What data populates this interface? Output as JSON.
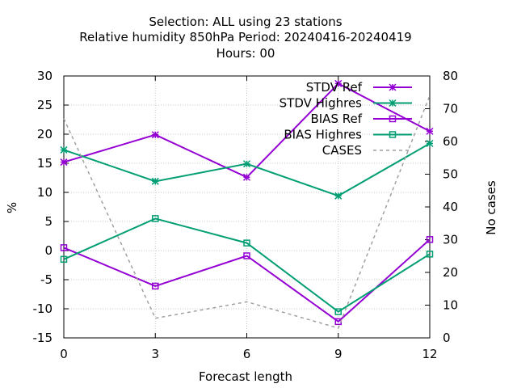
{
  "chart_data": {
    "type": "line",
    "title_lines": [
      "Selection: ALL using    23 stations",
      "Relative humidity 850hPa    Period: 20240416-20240419",
      "Hours:  00"
    ],
    "xlabel": "Forecast length",
    "ylabel": "%",
    "y2label": "No cases",
    "x": [
      0,
      3,
      6,
      9,
      12
    ],
    "xlim": [
      0,
      12
    ],
    "ylim": [
      -15,
      30
    ],
    "y2lim": [
      0,
      80
    ],
    "x_ticks": [
      "0",
      "3",
      "6",
      "9",
      "12"
    ],
    "y_ticks": [
      "-15",
      "-10",
      "-5",
      "0",
      "5",
      "10",
      "15",
      "20",
      "25",
      "30"
    ],
    "y2_ticks": [
      "0",
      "10",
      "20",
      "30",
      "40",
      "50",
      "60",
      "70",
      "80"
    ],
    "grid": true,
    "legend_position": "top-right",
    "series": [
      {
        "name": "STDV Ref",
        "axis": "y",
        "color": "#9400d3",
        "marker": "star",
        "dash": false,
        "values": [
          15.2,
          19.9,
          12.6,
          28.7,
          20.5
        ]
      },
      {
        "name": "STDV Highres",
        "axis": "y",
        "color": "#009e73",
        "marker": "star",
        "dash": false,
        "values": [
          17.3,
          11.9,
          14.9,
          9.4,
          18.4
        ]
      },
      {
        "name": "BIAS Ref",
        "axis": "y",
        "color": "#9400d3",
        "marker": "square",
        "dash": false,
        "values": [
          0.5,
          -6.1,
          -0.9,
          -12.2,
          1.9
        ]
      },
      {
        "name": "BIAS Highres",
        "axis": "y",
        "color": "#009e73",
        "marker": "square",
        "dash": false,
        "values": [
          -1.5,
          5.5,
          1.3,
          -10.5,
          -0.6
        ]
      },
      {
        "name": "CASES",
        "axis": "y2",
        "color": "#a0a0a0",
        "marker": "none",
        "dash": true,
        "values": [
          67,
          6,
          11,
          3,
          74
        ]
      }
    ]
  }
}
